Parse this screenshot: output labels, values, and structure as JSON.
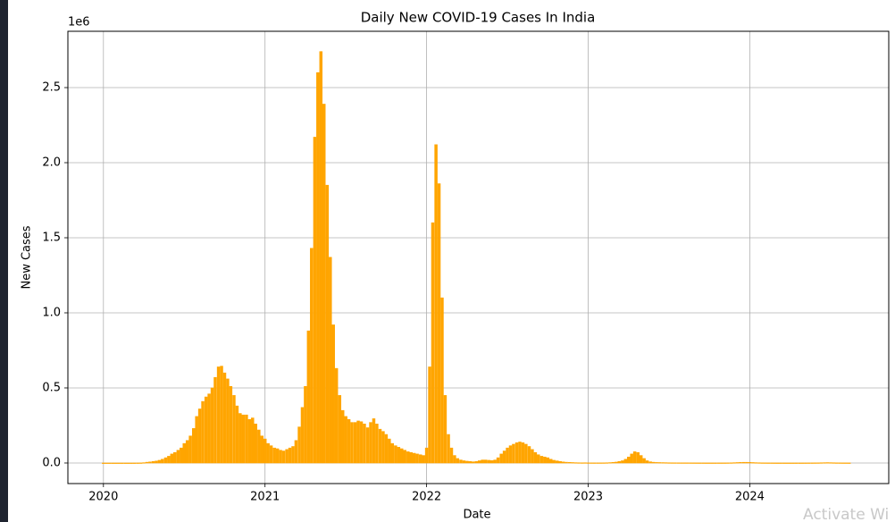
{
  "chart_data": {
    "type": "bar",
    "title": "Daily New COVID-19 Cases  In  India",
    "x_label": "Date",
    "y_label": "New Cases",
    "y_offset_label": "1e6",
    "watermark": "Activate Wi",
    "color": "#ffa500",
    "grid": true,
    "xlim": [
      2019.78,
      2024.86
    ],
    "xticks": [
      2020,
      2021,
      2022,
      2023,
      2024
    ],
    "ylim": [
      -137000,
      2875000
    ],
    "yticks": [
      {
        "value": 0,
        "label": "0.0"
      },
      {
        "value": 500000,
        "label": "0.5"
      },
      {
        "value": 1000000,
        "label": "1.0"
      },
      {
        "value": 1500000,
        "label": "1.5"
      },
      {
        "value": 2000000,
        "label": "2.0"
      },
      {
        "value": 2500000,
        "label": "2.5"
      }
    ],
    "x": [
      2020,
      2020.019,
      2020.038,
      2020.058,
      2020.077,
      2020.096,
      2020.115,
      2020.135,
      2020.154,
      2020.173,
      2020.192,
      2020.212,
      2020.231,
      2020.25,
      2020.269,
      2020.288,
      2020.308,
      2020.327,
      2020.346,
      2020.365,
      2020.385,
      2020.404,
      2020.423,
      2020.442,
      2020.462,
      2020.481,
      2020.5,
      2020.519,
      2020.538,
      2020.558,
      2020.577,
      2020.596,
      2020.615,
      2020.635,
      2020.654,
      2020.673,
      2020.692,
      2020.712,
      2020.731,
      2020.75,
      2020.769,
      2020.788,
      2020.808,
      2020.827,
      2020.846,
      2020.865,
      2020.885,
      2020.904,
      2020.923,
      2020.942,
      2020.962,
      2020.981,
      2021,
      2021.019,
      2021.038,
      2021.058,
      2021.077,
      2021.096,
      2021.115,
      2021.135,
      2021.154,
      2021.173,
      2021.192,
      2021.212,
      2021.231,
      2021.25,
      2021.269,
      2021.288,
      2021.308,
      2021.327,
      2021.346,
      2021.365,
      2021.385,
      2021.404,
      2021.423,
      2021.442,
      2021.462,
      2021.481,
      2021.5,
      2021.519,
      2021.538,
      2021.558,
      2021.577,
      2021.596,
      2021.615,
      2021.635,
      2021.654,
      2021.673,
      2021.692,
      2021.712,
      2021.731,
      2021.75,
      2021.769,
      2021.788,
      2021.808,
      2021.827,
      2021.846,
      2021.865,
      2021.885,
      2021.904,
      2021.923,
      2021.942,
      2021.962,
      2021.981,
      2022,
      2022.019,
      2022.038,
      2022.058,
      2022.077,
      2022.096,
      2022.115,
      2022.135,
      2022.154,
      2022.173,
      2022.192,
      2022.212,
      2022.231,
      2022.25,
      2022.269,
      2022.288,
      2022.308,
      2022.327,
      2022.346,
      2022.365,
      2022.385,
      2022.404,
      2022.423,
      2022.442,
      2022.462,
      2022.481,
      2022.5,
      2022.519,
      2022.538,
      2022.558,
      2022.577,
      2022.596,
      2022.615,
      2022.635,
      2022.654,
      2022.673,
      2022.692,
      2022.712,
      2022.731,
      2022.75,
      2022.769,
      2022.788,
      2022.808,
      2022.827,
      2022.846,
      2022.865,
      2022.885,
      2022.904,
      2022.923,
      2022.942,
      2022.962,
      2022.981,
      2023,
      2023.019,
      2023.038,
      2023.058,
      2023.077,
      2023.096,
      2023.115,
      2023.135,
      2023.154,
      2023.173,
      2023.192,
      2023.212,
      2023.231,
      2023.25,
      2023.269,
      2023.288,
      2023.308,
      2023.327,
      2023.346,
      2023.365,
      2023.385,
      2023.404,
      2023.423,
      2023.442,
      2023.462,
      2023.481,
      2023.5,
      2023.519,
      2023.538,
      2023.558,
      2023.577,
      2023.596,
      2023.615,
      2023.635,
      2023.654,
      2023.673,
      2023.692,
      2023.712,
      2023.731,
      2023.75,
      2023.769,
      2023.788,
      2023.808,
      2023.827,
      2023.846,
      2023.865,
      2023.885,
      2023.904,
      2023.923,
      2023.942,
      2023.962,
      2023.981,
      2024,
      2024.019,
      2024.038,
      2024.058,
      2024.077,
      2024.096,
      2024.115,
      2024.135,
      2024.154,
      2024.173,
      2024.192,
      2024.212,
      2024.231,
      2024.25,
      2024.269,
      2024.288,
      2024.308,
      2024.327,
      2024.346,
      2024.365,
      2024.385,
      2024.404,
      2024.423,
      2024.442,
      2024.462,
      2024.481,
      2024.5,
      2024.519,
      2024.538,
      2024.558,
      2024.577,
      2024.596,
      2024.615
    ],
    "values": [
      0,
      0,
      0,
      0,
      0,
      0,
      0,
      0,
      0,
      0,
      100,
      300,
      600,
      2000,
      5000,
      7000,
      10000,
      13000,
      18000,
      25000,
      35000,
      45000,
      60000,
      70000,
      85000,
      100000,
      130000,
      150000,
      180000,
      230000,
      310000,
      360000,
      410000,
      440000,
      460000,
      500000,
      570000,
      640000,
      645000,
      600000,
      560000,
      510000,
      450000,
      380000,
      330000,
      320000,
      320000,
      290000,
      300000,
      260000,
      220000,
      180000,
      160000,
      130000,
      115000,
      100000,
      95000,
      85000,
      80000,
      90000,
      100000,
      110000,
      150000,
      240000,
      370000,
      510000,
      880000,
      1430000,
      2170000,
      2600000,
      2740000,
      2390000,
      1850000,
      1370000,
      920000,
      630000,
      450000,
      350000,
      310000,
      290000,
      270000,
      270000,
      280000,
      275000,
      260000,
      235000,
      270000,
      295000,
      260000,
      225000,
      210000,
      190000,
      160000,
      130000,
      115000,
      105000,
      95000,
      85000,
      75000,
      70000,
      65000,
      60000,
      55000,
      50000,
      100000,
      640000,
      1600000,
      2120000,
      1860000,
      1100000,
      450000,
      190000,
      100000,
      50000,
      30000,
      20000,
      15000,
      12000,
      10000,
      8000,
      10000,
      15000,
      20000,
      20000,
      18000,
      16000,
      20000,
      35000,
      60000,
      80000,
      100000,
      115000,
      125000,
      135000,
      140000,
      135000,
      125000,
      110000,
      90000,
      70000,
      55000,
      45000,
      40000,
      35000,
      25000,
      18000,
      14000,
      10000,
      7000,
      5000,
      4000,
      3000,
      2000,
      1500,
      1200,
      1500,
      1000,
      800,
      700,
      700,
      800,
      1000,
      1500,
      2500,
      4000,
      6000,
      10000,
      15000,
      25000,
      40000,
      60000,
      75000,
      70000,
      50000,
      30000,
      15000,
      8000,
      5000,
      3500,
      3000,
      2500,
      2000,
      1500,
      1300,
      1200,
      1100,
      1000,
      1000,
      900,
      800,
      700,
      600,
      500,
      500,
      400,
      400,
      400,
      400,
      500,
      500,
      600,
      800,
      1200,
      2000,
      3000,
      4000,
      4500,
      4500,
      4000,
      3000,
      2000,
      1500,
      1000,
      800,
      600,
      500,
      400,
      300,
      300,
      300,
      250,
      250,
      250,
      300,
      300,
      350,
      400,
      500,
      600,
      800,
      1000,
      1500,
      2000,
      2500,
      2000,
      1500,
      1000,
      800,
      600,
      500,
      400
    ]
  }
}
